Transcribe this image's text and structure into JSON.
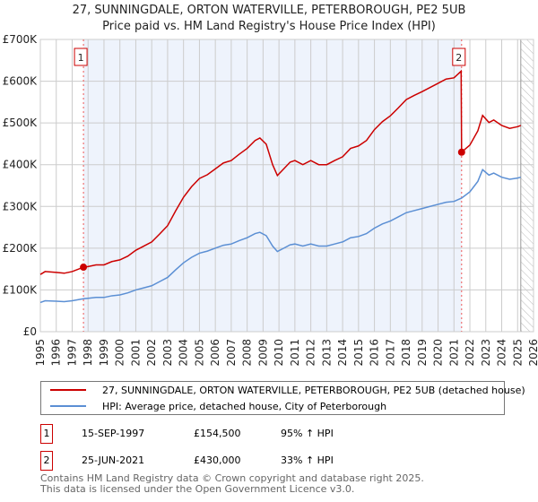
{
  "chart_data": {
    "type": "line",
    "title": "27, SUNNINGDALE, ORTON WATERVILLE, PETERBOROUGH, PE2 5UB",
    "subtitle": "Price paid vs. HM Land Registry's House Price Index (HPI)",
    "xlim": [
      1995,
      2026
    ],
    "ylim": [
      0,
      700000
    ],
    "x_ticks": [
      "1995",
      "1996",
      "1997",
      "1998",
      "1999",
      "2000",
      "2001",
      "2002",
      "2003",
      "2004",
      "2005",
      "2006",
      "2007",
      "2008",
      "2009",
      "2010",
      "2011",
      "2012",
      "2013",
      "2014",
      "2015",
      "2016",
      "2017",
      "2018",
      "2019",
      "2020",
      "2021",
      "2022",
      "2023",
      "2024",
      "2025",
      "2026"
    ],
    "y_ticks": [
      {
        "v": 0,
        "label": "£0"
      },
      {
        "v": 100000,
        "label": "£100K"
      },
      {
        "v": 200000,
        "label": "£200K"
      },
      {
        "v": 300000,
        "label": "£300K"
      },
      {
        "v": 400000,
        "label": "£400K"
      },
      {
        "v": 500000,
        "label": "£500K"
      },
      {
        "v": 600000,
        "label": "£600K"
      },
      {
        "v": 700000,
        "label": "£700K"
      }
    ],
    "grid": true,
    "shaded_range": [
      1997.71,
      2021.48
    ],
    "forecast_hatch_from": 2025.2,
    "series": [
      {
        "name": "27, SUNNINGDALE, ORTON WATERVILLE, PETERBOROUGH, PE2 5UB (detached house)",
        "color": "#cc0000",
        "x": [
          1995.0,
          1995.3,
          1996,
          1996.5,
          1997,
          1997.71,
          1998,
          1998.5,
          1999,
          1999.5,
          2000,
          2000.5,
          2001,
          2001.5,
          2002,
          2002.5,
          2003,
          2003.5,
          2004,
          2004.5,
          2005,
          2005.5,
          2006,
          2006.5,
          2007,
          2007.5,
          2008,
          2008.5,
          2008.8,
          2009.2,
          2009.6,
          2009.9,
          2010.3,
          2010.7,
          2011,
          2011.5,
          2012,
          2012.5,
          2013,
          2013.5,
          2014,
          2014.5,
          2015,
          2015.5,
          2016,
          2016.5,
          2017,
          2017.5,
          2018,
          2018.5,
          2019,
          2019.5,
          2020,
          2020.5,
          2021,
          2021.45,
          2021.48,
          2022,
          2022.5,
          2022.8,
          2023.2,
          2023.5,
          2024,
          2024.5,
          2025,
          2025.2
        ],
        "y": [
          137000,
          144000,
          142000,
          140000,
          144000,
          154500,
          156000,
          160000,
          160000,
          168000,
          172000,
          181000,
          195000,
          205000,
          215000,
          234000,
          254000,
          289000,
          322000,
          347000,
          367000,
          376000,
          390000,
          404000,
          410000,
          425000,
          439000,
          458000,
          464000,
          449000,
          400000,
          374000,
          390000,
          406000,
          410000,
          400000,
          410000,
          400000,
          400000,
          410000,
          419000,
          439000,
          445000,
          458000,
          484000,
          503000,
          517000,
          536000,
          556000,
          566000,
          575000,
          585000,
          595000,
          605000,
          608000,
          624000,
          430000,
          447000,
          481000,
          518000,
          501000,
          507000,
          494000,
          487000,
          491000,
          494000
        ]
      },
      {
        "name": "HPI: Average price, detached house, City of Peterborough",
        "color": "#5b8fd4",
        "x": [
          1995.0,
          1995.3,
          1996,
          1996.5,
          1997,
          1997.71,
          1998,
          1998.5,
          1999,
          1999.5,
          2000,
          2000.5,
          2001,
          2001.5,
          2002,
          2002.5,
          2003,
          2003.5,
          2004,
          2004.5,
          2005,
          2005.5,
          2006,
          2006.5,
          2007,
          2007.5,
          2008,
          2008.5,
          2008.8,
          2009.2,
          2009.6,
          2009.9,
          2010.3,
          2010.7,
          2011,
          2011.5,
          2012,
          2012.5,
          2013,
          2013.5,
          2014,
          2014.5,
          2015,
          2015.5,
          2016,
          2016.5,
          2017,
          2017.5,
          2018,
          2018.5,
          2019,
          2019.5,
          2020,
          2020.5,
          2021,
          2021.48,
          2022,
          2022.5,
          2022.8,
          2023.2,
          2023.5,
          2024,
          2024.5,
          2025,
          2025.2
        ],
        "y": [
          70000,
          74000,
          73000,
          72000,
          74000,
          79000,
          80000,
          82000,
          82000,
          86000,
          88000,
          93000,
          100000,
          105000,
          110000,
          120000,
          130000,
          148000,
          165000,
          178000,
          188000,
          193000,
          200000,
          207000,
          210000,
          218000,
          225000,
          235000,
          238000,
          230000,
          205000,
          192000,
          200000,
          208000,
          210000,
          205000,
          210000,
          205000,
          205000,
          210000,
          215000,
          225000,
          228000,
          235000,
          248000,
          258000,
          265000,
          275000,
          285000,
          290000,
          295000,
          300000,
          305000,
          310000,
          312000,
          320000,
          335000,
          360000,
          388000,
          375000,
          380000,
          370000,
          365000,
          368000,
          370000
        ]
      }
    ],
    "sales": [
      {
        "id": "1",
        "x": 1997.71,
        "y": 154500,
        "date": "15-SEP-1997",
        "price": "£154,500",
        "hpi": "95% ↑ HPI"
      },
      {
        "id": "2",
        "x": 2021.48,
        "y": 430000,
        "date": "25-JUN-2021",
        "price": "£430,000",
        "hpi": "33% ↑ HPI"
      }
    ]
  },
  "footer": {
    "line1": "Contains HM Land Registry data © Crown copyright and database right 2025.",
    "line2": "This data is licensed under the Open Government Licence v3.0."
  }
}
